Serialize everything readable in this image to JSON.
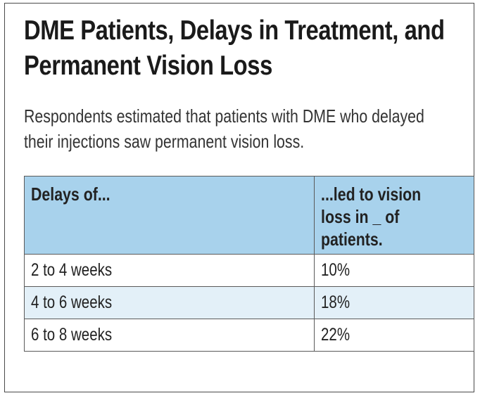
{
  "title": "DME Patients, Delays in Treatment, and Permanent Vision Loss",
  "subtitle": "Respondents estimated that patients with DME who delayed their injections saw permanent vision loss.",
  "chart_data": {
    "type": "table",
    "columns": [
      "Delays of...",
      "...led to vision loss in _ of patients."
    ],
    "rows": [
      {
        "delay": "2 to 4 weeks",
        "pct": "10%"
      },
      {
        "delay": "4 to 6 weeks",
        "pct": "18%"
      },
      {
        "delay": "6 to 8 weeks",
        "pct": "22%"
      }
    ]
  },
  "colors": {
    "header_bg": "#a8d2ec",
    "alt_row_bg": "#e3f0f8",
    "border": "#5a5a5a"
  }
}
